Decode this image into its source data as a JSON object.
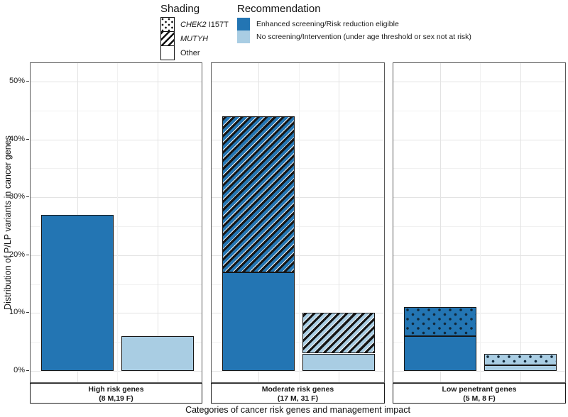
{
  "legend_shading": {
    "title": "Shading",
    "items": [
      {
        "gene": "CHEK2",
        "suffix": " I157T",
        "pattern": "dots"
      },
      {
        "gene": "MUTYH",
        "suffix": "",
        "pattern": "stripes"
      },
      {
        "gene": "",
        "suffix": "Other",
        "pattern": "none"
      }
    ]
  },
  "legend_recommendation": {
    "title": "Recommendation",
    "items": [
      {
        "label": "Enhanced screening/Risk reduction eligible",
        "color": "#2375b3"
      },
      {
        "label": "No screening/Intervention (under age threshold or sex not at risk)",
        "color": "#a9cde3"
      }
    ]
  },
  "chart_data": {
    "type": "bar",
    "stacked": true,
    "title": "",
    "xlabel": "Categories of cancer risk genes and management impact",
    "ylabel": "Distribution of P/LP variants in cancer genes",
    "units": "percent",
    "ylim": [
      0,
      52
    ],
    "yticks": [
      0,
      10,
      20,
      30,
      40,
      50
    ],
    "ytick_labels": [
      "0%",
      "10%",
      "20%",
      "30%",
      "40%",
      "50%"
    ],
    "minor_yticks": [
      5,
      15,
      25,
      35,
      45
    ],
    "grid": "major+minor",
    "legend_position": "top",
    "colors": {
      "enhanced": "#2375b3",
      "none": "#a9cde3"
    },
    "panels": [
      {
        "label_line1": "High risk genes",
        "label_line2": "(8 M,19 F)",
        "bars": [
          {
            "recommendation": "Enhanced screening/Risk reduction eligible",
            "total": 27,
            "segments": [
              {
                "shading": "Other",
                "value": 27
              }
            ]
          },
          {
            "recommendation": "No screening/Intervention (under age threshold or sex not at risk)",
            "total": 6,
            "segments": [
              {
                "shading": "Other",
                "value": 6
              }
            ]
          }
        ]
      },
      {
        "label_line1": "Moderate risk genes",
        "label_line2": "(17 M, 31 F)",
        "bars": [
          {
            "recommendation": "Enhanced screening/Risk reduction eligible",
            "total": 44,
            "segments": [
              {
                "shading": "Other",
                "value": 17
              },
              {
                "shading": "MUTYH",
                "value": 27
              }
            ]
          },
          {
            "recommendation": "No screening/Intervention (under age threshold or sex not at risk)",
            "total": 10,
            "segments": [
              {
                "shading": "Other",
                "value": 3
              },
              {
                "shading": "MUTYH",
                "value": 7
              }
            ]
          }
        ]
      },
      {
        "label_line1": "Low penetrant genes",
        "label_line2": "(5 M, 8 F)",
        "bars": [
          {
            "recommendation": "Enhanced screening/Risk reduction eligible",
            "total": 11,
            "segments": [
              {
                "shading": "Other",
                "value": 6
              },
              {
                "shading": "CHEK2 I157T",
                "value": 5
              }
            ]
          },
          {
            "recommendation": "No screening/Intervention (under age threshold or sex not at risk)",
            "total": 3,
            "segments": [
              {
                "shading": "Other",
                "value": 1
              },
              {
                "shading": "CHEK2 I157T",
                "value": 2
              }
            ]
          }
        ]
      }
    ]
  }
}
